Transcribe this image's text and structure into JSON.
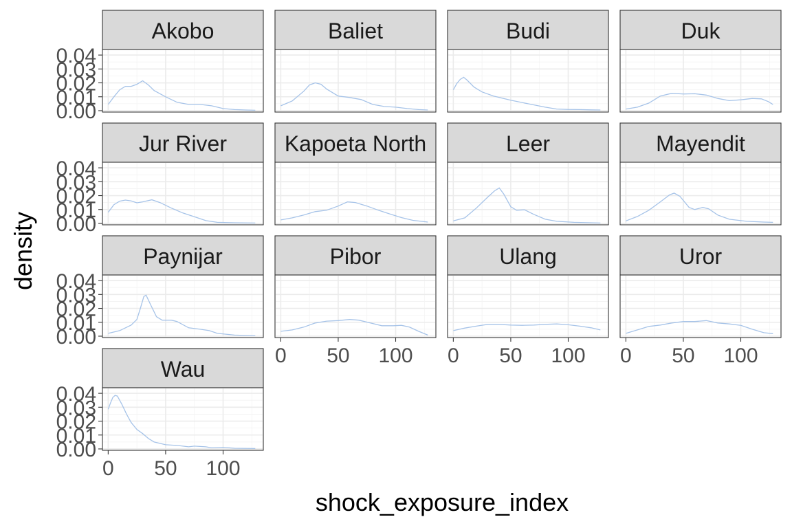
{
  "chart_data": {
    "type": "line",
    "chart_kind": "faceted density",
    "xlabel": "shock_exposure_index",
    "ylabel": "density",
    "xlim": [
      -5,
      135
    ],
    "ylim": [
      -0.001,
      0.044
    ],
    "x_ticks": [
      0,
      50,
      100
    ],
    "y_ticks": [
      0.0,
      0.01,
      0.02,
      0.03,
      0.04
    ],
    "y_tick_labels": [
      "0.00",
      "0.01",
      "0.02",
      "0.03",
      "0.04"
    ],
    "x_tick_labels": [
      "0",
      "50",
      "100"
    ],
    "grid": true,
    "line_color": "#a6c3e8",
    "facets": [
      {
        "name": "Akobo",
        "points": [
          [
            0,
            0.0045
          ],
          [
            5,
            0.01
          ],
          [
            10,
            0.015
          ],
          [
            15,
            0.0175
          ],
          [
            20,
            0.0175
          ],
          [
            25,
            0.019
          ],
          [
            30,
            0.0215
          ],
          [
            35,
            0.0185
          ],
          [
            40,
            0.0145
          ],
          [
            50,
            0.01
          ],
          [
            60,
            0.006
          ],
          [
            70,
            0.0045
          ],
          [
            80,
            0.0045
          ],
          [
            90,
            0.0035
          ],
          [
            100,
            0.0015
          ],
          [
            110,
            0.0008
          ],
          [
            120,
            0.0005
          ],
          [
            128,
            0.0003
          ]
        ]
      },
      {
        "name": "Baliet",
        "points": [
          [
            0,
            0.0035
          ],
          [
            10,
            0.007
          ],
          [
            20,
            0.014
          ],
          [
            25,
            0.0185
          ],
          [
            30,
            0.02
          ],
          [
            35,
            0.019
          ],
          [
            40,
            0.0155
          ],
          [
            50,
            0.0105
          ],
          [
            60,
            0.0095
          ],
          [
            70,
            0.008
          ],
          [
            80,
            0.0045
          ],
          [
            90,
            0.003
          ],
          [
            100,
            0.0025
          ],
          [
            110,
            0.0015
          ],
          [
            120,
            0.0008
          ],
          [
            128,
            0.0005
          ]
        ]
      },
      {
        "name": "Budi",
        "points": [
          [
            0,
            0.015
          ],
          [
            3,
            0.0195
          ],
          [
            6,
            0.0225
          ],
          [
            9,
            0.024
          ],
          [
            12,
            0.022
          ],
          [
            18,
            0.017
          ],
          [
            25,
            0.0135
          ],
          [
            35,
            0.0105
          ],
          [
            50,
            0.0075
          ],
          [
            65,
            0.005
          ],
          [
            80,
            0.0025
          ],
          [
            90,
            0.0012
          ],
          [
            100,
            0.0009
          ],
          [
            110,
            0.0008
          ],
          [
            120,
            0.0006
          ],
          [
            128,
            0.0005
          ]
        ]
      },
      {
        "name": "Duk",
        "points": [
          [
            0,
            0.0012
          ],
          [
            10,
            0.0025
          ],
          [
            20,
            0.0055
          ],
          [
            30,
            0.0105
          ],
          [
            40,
            0.0125
          ],
          [
            50,
            0.012
          ],
          [
            60,
            0.0122
          ],
          [
            70,
            0.0112
          ],
          [
            80,
            0.0088
          ],
          [
            90,
            0.0072
          ],
          [
            100,
            0.0078
          ],
          [
            110,
            0.0088
          ],
          [
            118,
            0.0085
          ],
          [
            124,
            0.0065
          ],
          [
            128,
            0.0045
          ]
        ]
      },
      {
        "name": "Jur River",
        "points": [
          [
            0,
            0.008
          ],
          [
            5,
            0.0135
          ],
          [
            10,
            0.016
          ],
          [
            15,
            0.0168
          ],
          [
            20,
            0.0162
          ],
          [
            25,
            0.0148
          ],
          [
            30,
            0.0155
          ],
          [
            38,
            0.017
          ],
          [
            45,
            0.015
          ],
          [
            55,
            0.011
          ],
          [
            65,
            0.0075
          ],
          [
            75,
            0.0048
          ],
          [
            85,
            0.002
          ],
          [
            95,
            0.0008
          ],
          [
            110,
            0.0005
          ],
          [
            128,
            0.0003
          ]
        ]
      },
      {
        "name": "Kapoeta North",
        "points": [
          [
            0,
            0.0025
          ],
          [
            10,
            0.004
          ],
          [
            20,
            0.006
          ],
          [
            30,
            0.0085
          ],
          [
            40,
            0.0095
          ],
          [
            50,
            0.0125
          ],
          [
            58,
            0.0155
          ],
          [
            65,
            0.015
          ],
          [
            75,
            0.0125
          ],
          [
            85,
            0.0095
          ],
          [
            95,
            0.0068
          ],
          [
            105,
            0.0042
          ],
          [
            115,
            0.0022
          ],
          [
            128,
            0.001
          ]
        ]
      },
      {
        "name": "Leer",
        "points": [
          [
            0,
            0.0018
          ],
          [
            10,
            0.004
          ],
          [
            20,
            0.011
          ],
          [
            30,
            0.019
          ],
          [
            36,
            0.0235
          ],
          [
            40,
            0.0255
          ],
          [
            44,
            0.021
          ],
          [
            50,
            0.012
          ],
          [
            55,
            0.0095
          ],
          [
            62,
            0.0098
          ],
          [
            70,
            0.0065
          ],
          [
            80,
            0.003
          ],
          [
            90,
            0.0015
          ],
          [
            105,
            0.0008
          ],
          [
            128,
            0.0003
          ]
        ]
      },
      {
        "name": "Mayendit",
        "points": [
          [
            0,
            0.0018
          ],
          [
            10,
            0.005
          ],
          [
            20,
            0.0095
          ],
          [
            30,
            0.0155
          ],
          [
            38,
            0.0205
          ],
          [
            42,
            0.0218
          ],
          [
            47,
            0.0195
          ],
          [
            55,
            0.0115
          ],
          [
            60,
            0.01
          ],
          [
            67,
            0.0115
          ],
          [
            72,
            0.0105
          ],
          [
            80,
            0.006
          ],
          [
            90,
            0.003
          ],
          [
            105,
            0.0015
          ],
          [
            120,
            0.001
          ],
          [
            128,
            0.0008
          ]
        ]
      },
      {
        "name": "Paynijar",
        "points": [
          [
            0,
            0.002
          ],
          [
            10,
            0.004
          ],
          [
            20,
            0.008
          ],
          [
            25,
            0.012
          ],
          [
            28,
            0.02
          ],
          [
            31,
            0.0285
          ],
          [
            33,
            0.0295
          ],
          [
            37,
            0.0225
          ],
          [
            42,
            0.014
          ],
          [
            47,
            0.0115
          ],
          [
            55,
            0.0115
          ],
          [
            60,
            0.0105
          ],
          [
            70,
            0.006
          ],
          [
            80,
            0.005
          ],
          [
            88,
            0.004
          ],
          [
            95,
            0.002
          ],
          [
            110,
            0.0008
          ],
          [
            128,
            0.0003
          ]
        ]
      },
      {
        "name": "Pibor",
        "points": [
          [
            0,
            0.0035
          ],
          [
            10,
            0.0045
          ],
          [
            20,
            0.0065
          ],
          [
            30,
            0.0095
          ],
          [
            40,
            0.0108
          ],
          [
            50,
            0.0112
          ],
          [
            60,
            0.012
          ],
          [
            68,
            0.0115
          ],
          [
            78,
            0.0095
          ],
          [
            88,
            0.0075
          ],
          [
            98,
            0.0075
          ],
          [
            105,
            0.0078
          ],
          [
            112,
            0.0065
          ],
          [
            120,
            0.0035
          ],
          [
            128,
            0.0008
          ]
        ]
      },
      {
        "name": "Ulang",
        "points": [
          [
            0,
            0.004
          ],
          [
            10,
            0.0058
          ],
          [
            20,
            0.0072
          ],
          [
            30,
            0.0085
          ],
          [
            40,
            0.0085
          ],
          [
            50,
            0.008
          ],
          [
            60,
            0.0078
          ],
          [
            70,
            0.008
          ],
          [
            80,
            0.0085
          ],
          [
            90,
            0.0088
          ],
          [
            100,
            0.0082
          ],
          [
            110,
            0.0072
          ],
          [
            120,
            0.006
          ],
          [
            128,
            0.0045
          ]
        ]
      },
      {
        "name": "Uror",
        "points": [
          [
            0,
            0.002
          ],
          [
            10,
            0.0045
          ],
          [
            20,
            0.007
          ],
          [
            30,
            0.008
          ],
          [
            40,
            0.0095
          ],
          [
            50,
            0.0105
          ],
          [
            60,
            0.0105
          ],
          [
            70,
            0.0112
          ],
          [
            80,
            0.0095
          ],
          [
            90,
            0.0088
          ],
          [
            100,
            0.0078
          ],
          [
            110,
            0.005
          ],
          [
            120,
            0.0025
          ],
          [
            128,
            0.0018
          ]
        ]
      },
      {
        "name": "Wau",
        "points": [
          [
            0,
            0.0285
          ],
          [
            2,
            0.033
          ],
          [
            4,
            0.037
          ],
          [
            6,
            0.0385
          ],
          [
            8,
            0.038
          ],
          [
            12,
            0.032
          ],
          [
            16,
            0.025
          ],
          [
            20,
            0.019
          ],
          [
            25,
            0.014
          ],
          [
            30,
            0.011
          ],
          [
            35,
            0.0075
          ],
          [
            40,
            0.005
          ],
          [
            50,
            0.003
          ],
          [
            60,
            0.0025
          ],
          [
            70,
            0.0015
          ],
          [
            75,
            0.002
          ],
          [
            85,
            0.0015
          ],
          [
            90,
            0.0008
          ],
          [
            100,
            0.0012
          ],
          [
            110,
            0.0005
          ],
          [
            128,
            0.0003
          ]
        ]
      }
    ]
  }
}
